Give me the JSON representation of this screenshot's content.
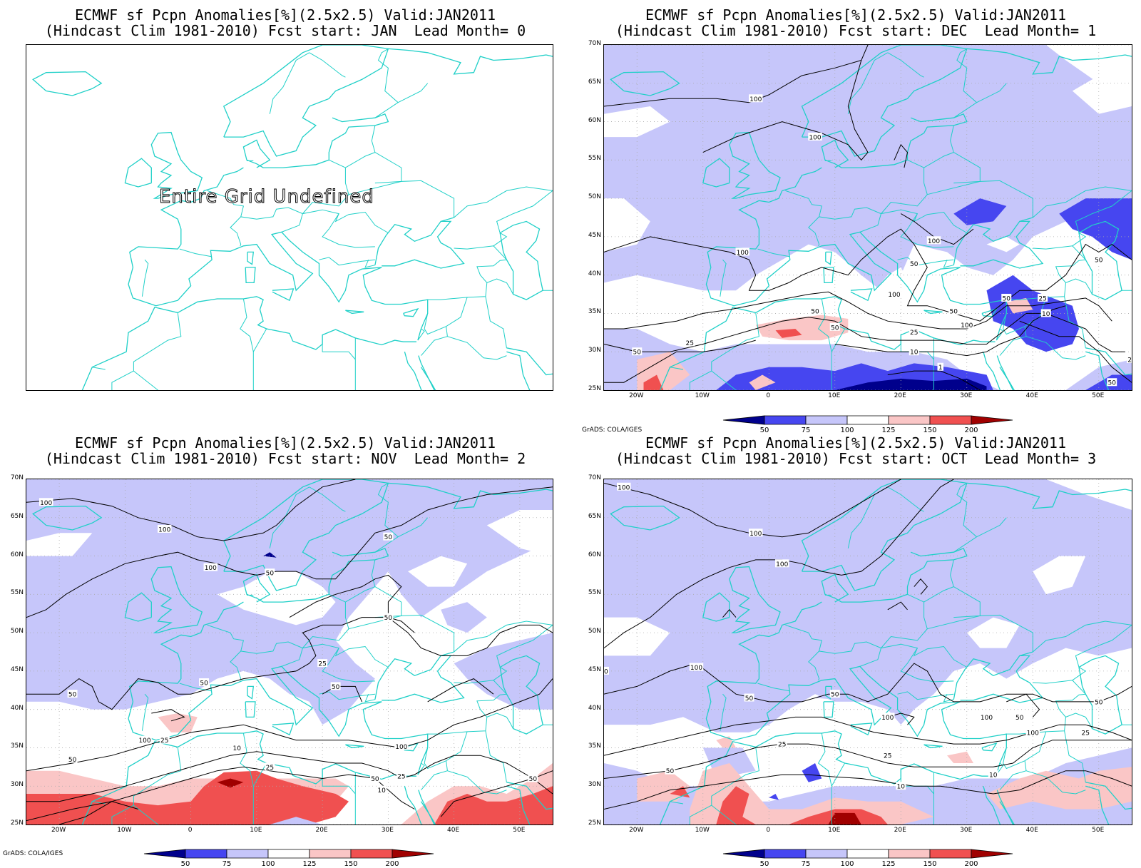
{
  "panels": [
    {
      "id": "p0",
      "title_line1": "ECMWF sf Pcpn Anomalies[%](2.5x2.5) Valid:JAN2011",
      "title_line2": "(Hindcast Clim 1981-2010) Fcst start: JAN  Lead Month= 0",
      "undefined_text": "Entire Grid Undefined",
      "has_data": false
    },
    {
      "id": "p1",
      "title_line1": "ECMWF sf Pcpn Anomalies[%](2.5x2.5) Valid:JAN2011",
      "title_line2": "(Hindcast Clim 1981-2010) Fcst start: DEC  Lead Month= 1",
      "has_data": true,
      "contour_labels": [
        "100",
        "100",
        "100",
        "50",
        "100",
        "50",
        "100",
        "50",
        "25",
        "50",
        "25",
        "50",
        "10",
        "1",
        "50",
        "10",
        "25",
        "25",
        "50",
        "100",
        "50"
      ]
    },
    {
      "id": "p2",
      "title_line1": "ECMWF sf Pcpn Anomalies[%](2.5x2.5) Valid:JAN2011",
      "title_line2": "(Hindcast Clim 1981-2010) Fcst start: NOV  Lead Month= 2",
      "has_data": true,
      "contour_labels": [
        "100",
        "100",
        "100",
        "50",
        "50",
        "50",
        "25",
        "50",
        "100",
        "50",
        "50",
        "25",
        "10",
        "50",
        "25",
        "100",
        "25",
        "10",
        "50",
        "50"
      ]
    },
    {
      "id": "p3",
      "title_line1": "ECMWF sf Pcpn Anomalies[%](2.5x2.5) Valid:JAN2011",
      "title_line2": "(Hindcast Clim 1981-2010) Fcst start: OCT  Lead Month= 3",
      "has_data": true,
      "contour_labels": [
        "100",
        "100",
        "100",
        "100",
        "50",
        "50",
        "100",
        "100",
        "50",
        "50",
        "25",
        "10",
        "50",
        "25",
        "10",
        "100",
        "25",
        "50"
      ]
    }
  ],
  "axes": {
    "lat_labels": [
      "70N",
      "65N",
      "60N",
      "55N",
      "50N",
      "45N",
      "40N",
      "35N",
      "30N",
      "25N"
    ],
    "lon_labels": [
      "20W",
      "10W",
      "0",
      "10E",
      "20E",
      "30E",
      "40E",
      "50E"
    ],
    "lat_values": [
      70,
      65,
      60,
      55,
      50,
      45,
      40,
      35,
      30,
      25
    ],
    "lon_values": [
      -20,
      -10,
      0,
      10,
      20,
      30,
      40,
      50
    ],
    "lon_range": [
      -25,
      55
    ],
    "lat_range": [
      25,
      70
    ]
  },
  "colorbar": {
    "labels": [
      "50",
      "75",
      "100",
      "125",
      "150",
      "200"
    ],
    "colors": [
      "#00008c",
      "#4646f0",
      "#c6c6fa",
      "#ffffff",
      "#fac6c6",
      "#f05050",
      "#a00000"
    ]
  },
  "grads_credit": "GrADS: COLA/IGES",
  "colors": {
    "coastline": "#20d0c8",
    "contour": "#000000",
    "grid": "#aaaaaa"
  }
}
